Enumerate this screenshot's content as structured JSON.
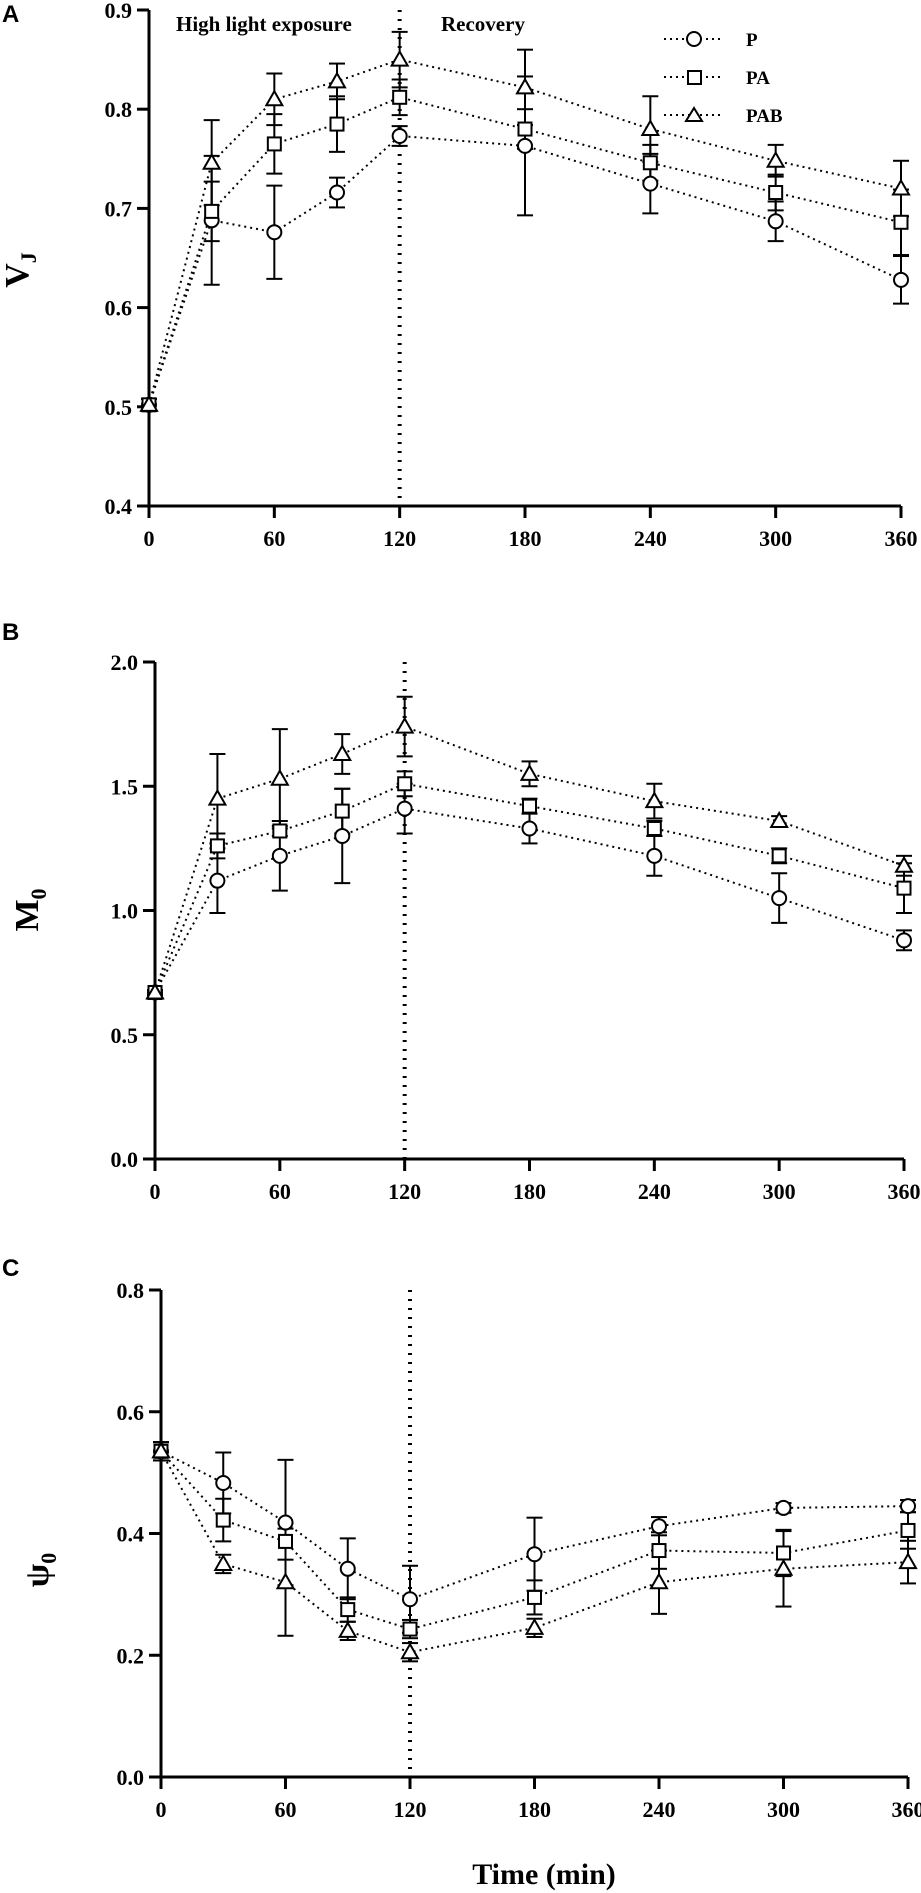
{
  "chart_data": [
    {
      "panel": "A",
      "type": "line",
      "ylabel_main": "V",
      "ylabel_sub": "J",
      "xlabel": "",
      "x": [
        0,
        30,
        60,
        90,
        120,
        180,
        240,
        300,
        360
      ],
      "xticks": [
        0,
        60,
        120,
        180,
        240,
        300,
        360
      ],
      "xlim": [
        0,
        360
      ],
      "yticks": [
        "0.4",
        "0.5",
        "0.6",
        "0.7",
        "0.8",
        "0.9"
      ],
      "ylim": [
        0.4,
        0.9
      ],
      "vline_x": 120,
      "annotations": [
        {
          "text": "High light exposure",
          "x": 60
        },
        {
          "text": "Recovery",
          "x": 180
        }
      ],
      "legend": true,
      "legend_position": "top-right",
      "series": [
        {
          "name": "P",
          "marker": "circle",
          "values": [
            0.502,
            0.688,
            0.676,
            0.716,
            0.773,
            0.763,
            0.725,
            0.687,
            0.628
          ],
          "errors": [
            0.006,
            0.065,
            0.047,
            0.015,
            0.01,
            0.07,
            0.03,
            0.02,
            0.024
          ]
        },
        {
          "name": "PA",
          "marker": "square",
          "values": [
            0.502,
            0.697,
            0.765,
            0.785,
            0.812,
            0.78,
            0.746,
            0.716,
            0.686
          ],
          "errors": [
            0.006,
            0.03,
            0.03,
            0.028,
            0.018,
            0.02,
            0.018,
            0.018,
            0.033
          ]
        },
        {
          "name": "PAB",
          "marker": "triangle",
          "values": [
            0.502,
            0.746,
            0.81,
            0.828,
            0.85,
            0.822,
            0.78,
            0.748,
            0.72
          ],
          "errors": [
            0.006,
            0.043,
            0.026,
            0.018,
            0.028,
            0.038,
            0.033,
            0.016,
            0.028
          ]
        }
      ]
    },
    {
      "panel": "B",
      "type": "line",
      "ylabel_main": "M",
      "ylabel_sub": "0",
      "xlabel": "",
      "x": [
        0,
        30,
        60,
        90,
        120,
        180,
        240,
        300,
        360
      ],
      "xticks": [
        0,
        60,
        120,
        180,
        240,
        300,
        360
      ],
      "xlim": [
        0,
        360
      ],
      "yticks": [
        "0.0",
        "0.5",
        "1.0",
        "1.5",
        "2.0"
      ],
      "ylim": [
        0,
        2.0
      ],
      "vline_x": 120,
      "legend": false,
      "series": [
        {
          "name": "P",
          "marker": "circle",
          "values": [
            0.67,
            1.12,
            1.22,
            1.3,
            1.41,
            1.33,
            1.22,
            1.05,
            0.88
          ],
          "errors": [
            0.01,
            0.13,
            0.14,
            0.19,
            0.1,
            0.06,
            0.08,
            0.1,
            0.04
          ]
        },
        {
          "name": "PA",
          "marker": "square",
          "values": [
            0.67,
            1.26,
            1.32,
            1.4,
            1.51,
            1.42,
            1.33,
            1.22,
            1.09
          ],
          "errors": [
            0.01,
            0.05,
            0.02,
            0.09,
            0.05,
            0.03,
            0.03,
            0.03,
            0.1
          ]
        },
        {
          "name": "PAB",
          "marker": "triangle",
          "values": [
            0.67,
            1.45,
            1.53,
            1.63,
            1.74,
            1.55,
            1.44,
            1.36,
            1.18
          ],
          "errors": [
            0.01,
            0.18,
            0.2,
            0.08,
            0.12,
            0.05,
            0.07,
            0.02,
            0.04
          ]
        }
      ]
    },
    {
      "panel": "C",
      "type": "line",
      "ylabel_main": "ψ",
      "ylabel_sub": "0",
      "xlabel": "Time (min)",
      "x": [
        0,
        30,
        60,
        90,
        120,
        180,
        240,
        300,
        360
      ],
      "xticks": [
        0,
        60,
        120,
        180,
        240,
        300,
        360
      ],
      "xlim": [
        0,
        360
      ],
      "yticks": [
        "0.0",
        "0.2",
        "0.4",
        "0.6",
        "0.8"
      ],
      "ylim": [
        0,
        0.8
      ],
      "vline_x": 120,
      "legend": false,
      "series": [
        {
          "name": "P",
          "marker": "circle",
          "values": [
            0.535,
            0.483,
            0.418,
            0.342,
            0.292,
            0.366,
            0.412,
            0.442,
            0.445
          ],
          "errors": [
            0.015,
            0.05,
            0.103,
            0.05,
            0.055,
            0.06,
            0.015,
            0.008,
            0.01
          ]
        },
        {
          "name": "PA",
          "marker": "square",
          "values": [
            0.535,
            0.422,
            0.387,
            0.275,
            0.243,
            0.295,
            0.372,
            0.368,
            0.405
          ],
          "errors": [
            0.015,
            0.035,
            0.03,
            0.02,
            0.015,
            0.028,
            0.03,
            0.038,
            0.03
          ]
        },
        {
          "name": "PAB",
          "marker": "triangle",
          "values": [
            0.535,
            0.35,
            0.32,
            0.24,
            0.205,
            0.245,
            0.32,
            0.342,
            0.353
          ],
          "errors": [
            0.015,
            0.015,
            0.088,
            0.015,
            0.015,
            0.015,
            0.052,
            0.062,
            0.035
          ]
        }
      ]
    }
  ]
}
